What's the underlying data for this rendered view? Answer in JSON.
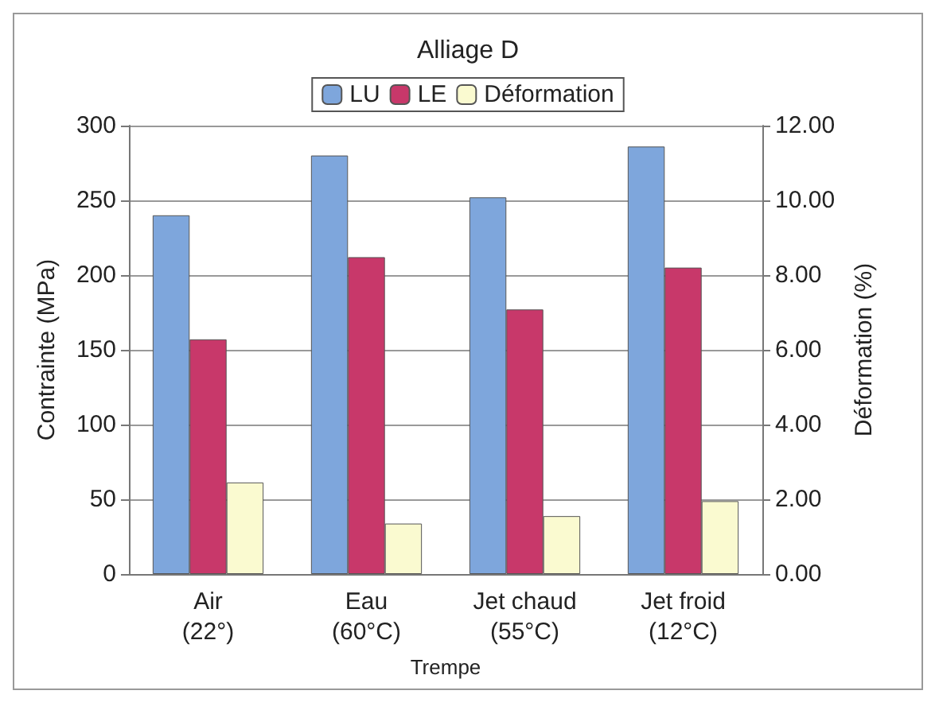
{
  "chart_data": {
    "type": "bar",
    "title": "Alliage D",
    "xlabel": "Trempe",
    "ylabel": "Contrainte (MPa)",
    "y2label": "Déformation (%)",
    "categories": [
      "Air\n(22°)",
      "Eau\n(60°C)",
      "Jet chaud\n(55°C)",
      "Jet froid\n(12°C)"
    ],
    "series": [
      {
        "name": "LU",
        "color": "#7ea6dc",
        "values": [
          240,
          280,
          252,
          286
        ]
      },
      {
        "name": "LE",
        "color": "#c8386a",
        "values": [
          157,
          212,
          177,
          205
        ]
      },
      {
        "name": "Déformation",
        "color": "#fafad0",
        "axis": "y2",
        "values": [
          2.45,
          1.35,
          1.55,
          1.95
        ]
      }
    ],
    "ylim": [
      0,
      300
    ],
    "yticks": [
      0,
      50,
      100,
      150,
      200,
      250,
      300
    ],
    "y2lim": [
      0,
      12
    ],
    "y2ticks": [
      {
        "value": 0,
        "label": "0.00"
      },
      {
        "value": 2,
        "label": "2.00"
      },
      {
        "value": 4,
        "label": "4.00"
      },
      {
        "value": 6,
        "label": "6.00"
      },
      {
        "value": 8,
        "label": "8.00"
      },
      {
        "value": 10,
        "label": "10.00"
      },
      {
        "value": 12,
        "label": "12.00"
      }
    ],
    "grid": "y",
    "legend": "top"
  }
}
